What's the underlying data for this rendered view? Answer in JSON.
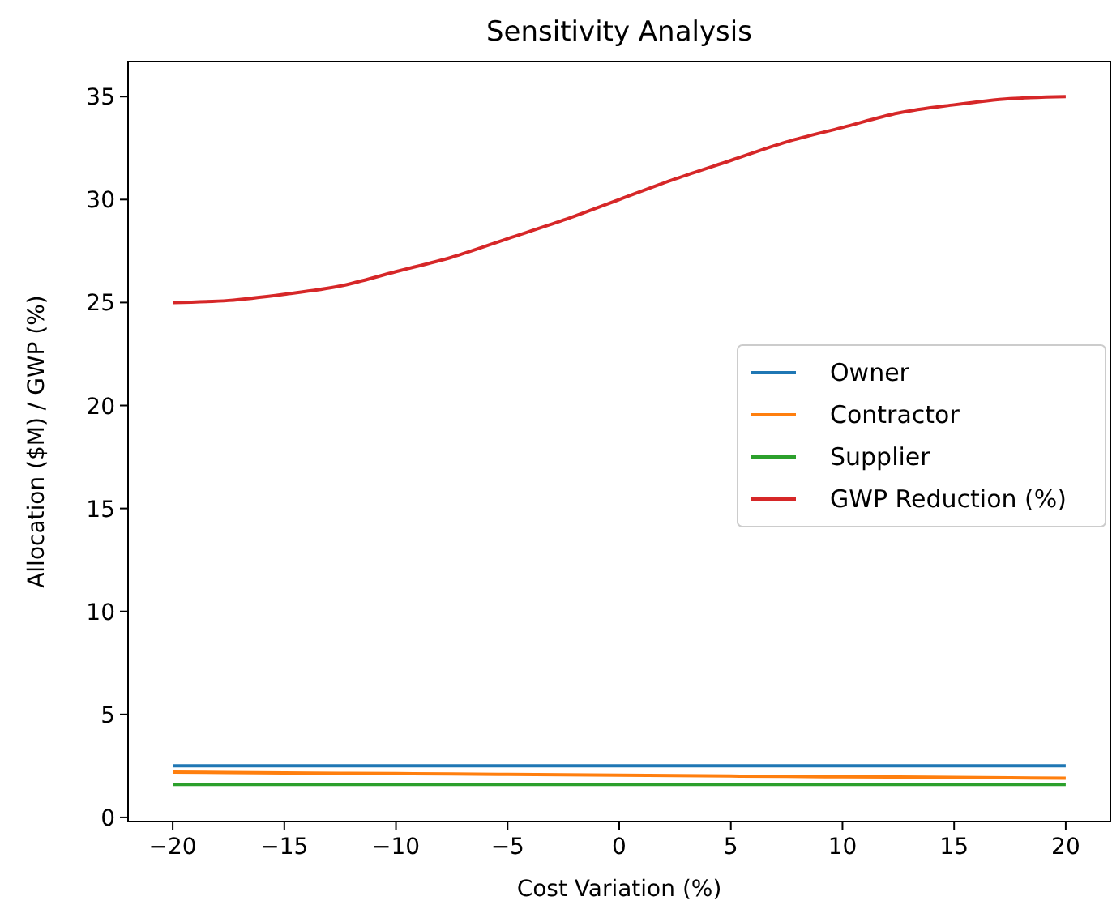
{
  "chart_data": {
    "type": "line",
    "title": "Sensitivity Analysis",
    "xlabel": "Cost Variation (%)",
    "ylabel": "Allocation ($M) / GWP (%)",
    "x": [
      -20,
      -17.5,
      -15,
      -12.5,
      -10,
      -7.5,
      -5,
      -2.5,
      0,
      2.5,
      5,
      7.5,
      10,
      12.5,
      15,
      17.5,
      20
    ],
    "series": [
      {
        "name": "Owner",
        "color": "#1f77b4",
        "values": [
          2.5,
          2.5,
          2.5,
          2.5,
          2.5,
          2.5,
          2.5,
          2.5,
          2.5,
          2.5,
          2.5,
          2.5,
          2.5,
          2.5,
          2.5,
          2.5,
          2.5
        ]
      },
      {
        "name": "Contractor",
        "color": "#ff7f0e",
        "values": [
          2.2,
          2.18,
          2.16,
          2.14,
          2.13,
          2.11,
          2.09,
          2.07,
          2.05,
          2.03,
          2.01,
          1.99,
          1.97,
          1.96,
          1.94,
          1.92,
          1.9
        ]
      },
      {
        "name": "Supplier",
        "color": "#2ca02c",
        "values": [
          1.6,
          1.6,
          1.6,
          1.6,
          1.6,
          1.6,
          1.6,
          1.6,
          1.6,
          1.6,
          1.6,
          1.6,
          1.6,
          1.6,
          1.6,
          1.6,
          1.6
        ]
      },
      {
        "name": "GWP Reduction (%)",
        "color": "#d62728",
        "values": [
          25,
          25.1,
          25.4,
          25.8,
          26.5,
          27.2,
          28.1,
          29,
          30,
          31,
          31.9,
          32.8,
          33.5,
          34.2,
          34.6,
          34.9,
          35
        ]
      }
    ],
    "xlim": [
      -22,
      22
    ],
    "xticks": [
      {
        "value": -20,
        "label": "−20"
      },
      {
        "value": -15,
        "label": "−15"
      },
      {
        "value": -10,
        "label": "−10"
      },
      {
        "value": -5,
        "label": "−5"
      },
      0,
      5,
      10,
      15,
      20
    ],
    "ylim": [
      -0.2,
      36.7
    ],
    "yticks": [
      0,
      5,
      10,
      15,
      20,
      25,
      30,
      35
    ],
    "legend": "right",
    "grid": false
  }
}
